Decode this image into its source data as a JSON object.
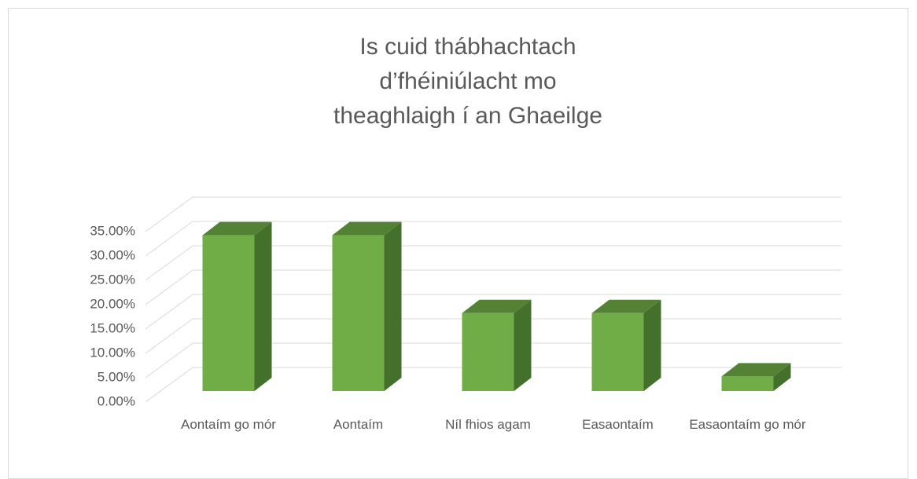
{
  "chart_data": {
    "type": "bar3d",
    "title": "Is cuid thábhachtach d’fhéiniúlacht mo theaghlaigh í an Ghaeilge",
    "categories": [
      "Aontaím go mór",
      "Aontaím",
      "Níl fhios agam",
      "Easaontaím",
      "Easaontaím go mór"
    ],
    "values": [
      32,
      32,
      16,
      16,
      3
    ],
    "color": "#70ad47",
    "ylim": [
      0,
      35
    ],
    "yticks": [
      {
        "value": 0,
        "label": "0.00%"
      },
      {
        "value": 5,
        "label": "5.00%"
      },
      {
        "value": 10,
        "label": "10.00%"
      },
      {
        "value": 15,
        "label": "15.00%"
      },
      {
        "value": 20,
        "label": "20.00%"
      },
      {
        "value": 25,
        "label": "25.00%"
      },
      {
        "value": 30,
        "label": "30.00%"
      },
      {
        "value": 35,
        "label": "35.00%"
      }
    ],
    "grid": true
  }
}
